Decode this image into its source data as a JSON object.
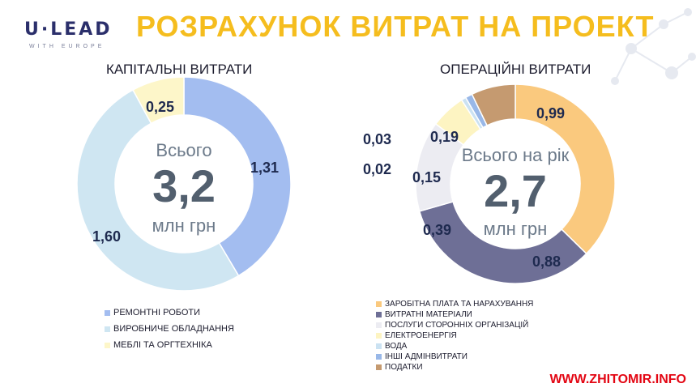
{
  "logo": {
    "main": "U·LEAD",
    "sub": "WITH EUROPE"
  },
  "title": "РОЗРАХУНОК ВИТРАТ НА ПРОЕКТ",
  "footer": "WWW.ZHITOMIR.INFO",
  "chart_data": [
    {
      "type": "pie",
      "title": "КАПІТАЛЬНІ ВИТРАТИ",
      "center": {
        "top": "Всього",
        "value": "3,2",
        "unit": "млн грн"
      },
      "categories": [
        "РЕМОНТНІ РОБОТИ",
        "ВИРОБНИЧЕ ОБЛАДНАННЯ",
        "МЕБЛІ ТА ОРГТЕХНІКА"
      ],
      "values": [
        1.31,
        1.6,
        0.25
      ],
      "labels": [
        "1,31",
        "1,60",
        "0,25"
      ],
      "colors": [
        "#a3bdf0",
        "#cfe6f2",
        "#fdf6c9"
      ],
      "legend_position": "bottom"
    },
    {
      "type": "pie",
      "title": "ОПЕРАЦІЙНІ ВИТРАТИ",
      "center": {
        "top": "Всього на рік",
        "value": "2,7",
        "unit": "млн грн"
      },
      "categories": [
        "ЗАРОБІТНА ПЛАТА ТА НАРАХУВАННЯ",
        "ВИТРАТНІ МАТЕРІАЛИ",
        "ПОСЛУГИ СТОРОННІХ ОРГАНІЗАЦІЙ",
        "ЕЛЕКТРОЕНЕРГІЯ",
        "ВОДА",
        "ІНШІ АДМІНВИТРАТИ",
        "ПОДАТКИ"
      ],
      "values": [
        0.99,
        0.88,
        0.39,
        0.15,
        0.02,
        0.03,
        0.19
      ],
      "labels": [
        "0,99",
        "0,88",
        "0,39",
        "0,15",
        "0,02",
        "0,03",
        "0,19"
      ],
      "colors": [
        "#fac97e",
        "#6e6f96",
        "#ececf2",
        "#fdf4c2",
        "#cbe2f2",
        "#99b8e8",
        "#c59a70"
      ],
      "legend_position": "bottom"
    }
  ]
}
